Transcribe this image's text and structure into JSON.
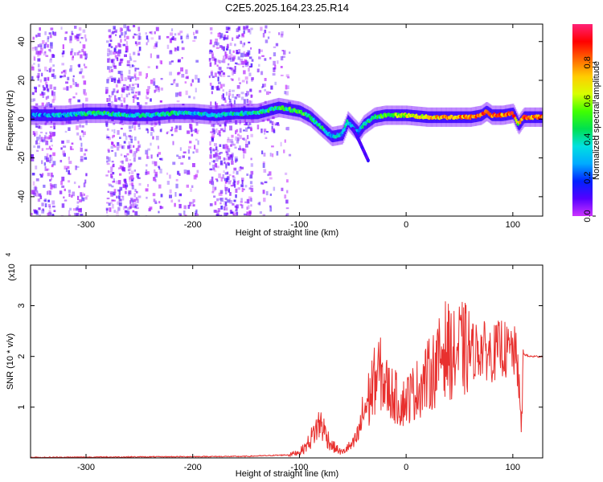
{
  "title": "C2E5.2025.164.23.25.R14",
  "colors": {
    "snr_line": "#e8302e",
    "frame": "#000000",
    "colormap": [
      "#cc33ff",
      "#5500ff",
      "#0022ff",
      "#00aaff",
      "#00e0e0",
      "#00e050",
      "#40ff00",
      "#d8ff00",
      "#ffcc00",
      "#ff6600",
      "#ff0000",
      "#ff2277"
    ]
  },
  "chart_data": [
    {
      "type": "heatmap",
      "title": "C2E5.2025.164.23.25.R14",
      "xlabel": "Height of straight line (km)",
      "ylabel": "Frequency (Hz)",
      "xlim": [
        -352,
        128
      ],
      "ylim": [
        -50,
        49
      ],
      "x_ticks": [
        -300,
        -200,
        -100,
        0,
        100
      ],
      "x_tick_labels": [
        "-300",
        "-200",
        "-100",
        "0",
        "100"
      ],
      "y_ticks": [
        -40,
        -20,
        0,
        20,
        40
      ],
      "y_tick_labels": [
        "-40",
        "-20",
        "0",
        "20",
        "40"
      ],
      "colorbar": {
        "label": "Normalized spectral amplitude",
        "range": [
          0,
          1
        ],
        "ticks": [
          0.0,
          0.2,
          0.4,
          0.6,
          0.8
        ],
        "tick_labels": [
          "0.0",
          "0.2",
          "0.4",
          "0.6",
          "0.8"
        ]
      },
      "ridge": {
        "x": [
          -352,
          -320,
          -300,
          -280,
          -260,
          -240,
          -220,
          -200,
          -180,
          -160,
          -140,
          -120,
          -110,
          -100,
          -90,
          -80,
          -70,
          -60,
          -55,
          -50,
          -45,
          -40,
          -30,
          -20,
          0,
          20,
          40,
          60,
          70,
          75,
          80,
          90,
          100,
          105,
          110,
          128
        ],
        "y": [
          2,
          2,
          3,
          3,
          2,
          2,
          3,
          3,
          2,
          3,
          3,
          6,
          5,
          4,
          1,
          -4,
          -9,
          -8,
          -1,
          -4,
          -7,
          -3,
          1,
          2,
          2,
          1,
          1,
          1,
          2,
          4,
          2,
          2,
          3,
          -3,
          1,
          1
        ],
        "amplitude": [
          0.25,
          0.3,
          0.4,
          0.4,
          0.35,
          0.35,
          0.4,
          0.35,
          0.35,
          0.35,
          0.4,
          0.45,
          0.45,
          0.5,
          0.45,
          0.4,
          0.35,
          0.3,
          0.35,
          0.3,
          0.3,
          0.35,
          0.45,
          0.5,
          0.6,
          0.7,
          0.75,
          0.8,
          0.85,
          0.9,
          0.85,
          0.8,
          0.9,
          0.6,
          0.85,
          0.8
        ]
      },
      "branch": {
        "x": [
          -50,
          -45,
          -40,
          -35
        ],
        "y": [
          -5,
          -10,
          -16,
          -22
        ]
      }
    },
    {
      "type": "line",
      "xlabel": "Height of straight line (km)",
      "ylabel": "SNR (10 * v/v)",
      "y_scale_label": "(x10",
      "y_scale_exponent": "4",
      "xlim": [
        -352,
        128
      ],
      "ylim": [
        0,
        3.8
      ],
      "x_ticks": [
        -300,
        -200,
        -100,
        0,
        100
      ],
      "x_tick_labels": [
        "-300",
        "-200",
        "-100",
        "0",
        "100"
      ],
      "y_ticks": [
        1,
        2,
        3
      ],
      "y_tick_labels": [
        "1",
        "2",
        "3"
      ],
      "series": [
        {
          "color": "#e8302e",
          "x": [
            -352,
            -250,
            -150,
            -110,
            -100,
            -95,
            -90,
            -85,
            -80,
            -75,
            -70,
            -60,
            -55,
            -50,
            -45,
            -40,
            -35,
            -30,
            -25,
            -20,
            -15,
            -10,
            -5,
            0,
            10,
            20,
            30,
            35,
            40,
            45,
            50,
            60,
            70,
            75,
            80,
            85,
            90,
            95,
            100,
            105,
            108,
            110,
            115,
            128
          ],
          "y": [
            0.01,
            0.02,
            0.03,
            0.06,
            0.12,
            0.2,
            0.35,
            0.55,
            0.7,
            0.45,
            0.25,
            0.1,
            0.2,
            0.25,
            0.45,
            0.9,
            1.15,
            1.5,
            1.7,
            1.45,
            1.3,
            1.2,
            1.05,
            1.15,
            1.35,
            1.6,
            1.85,
            2.2,
            2.1,
            2.0,
            2.15,
            2.1,
            2.15,
            2.1,
            2.05,
            2.1,
            2.2,
            2.05,
            2.15,
            1.8,
            0.5,
            2.05,
            2.0,
            2.0
          ]
        }
      ]
    }
  ]
}
